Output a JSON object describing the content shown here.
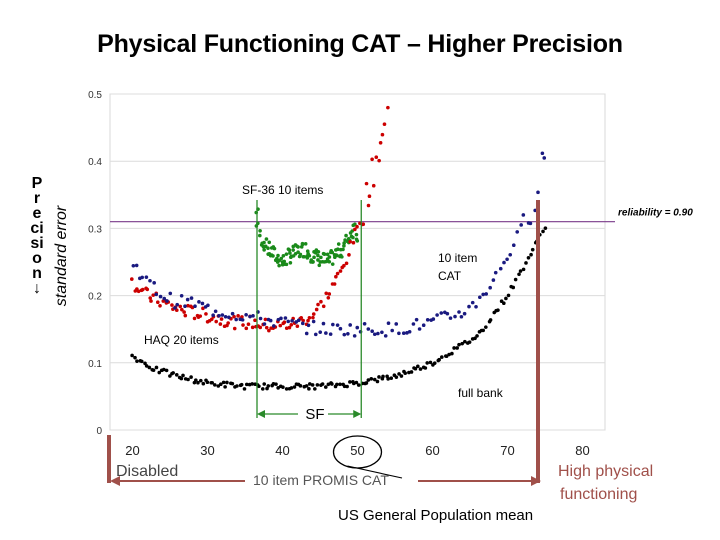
{
  "chart_data": {
    "type": "scatter",
    "title": "Physical Functioning CAT – Higher Precision",
    "ylabel": "standard error",
    "side_label": "Precision",
    "side_arrow": "↓",
    "xlim": [
      17,
      83
    ],
    "ylim": [
      0,
      0.5
    ],
    "y_ticks": [
      "0",
      "0.1",
      "0.2",
      "0.3",
      "0.4",
      "0.5"
    ],
    "x_ticks": [
      "20",
      "30",
      "40",
      "50",
      "60",
      "70",
      "80"
    ],
    "reliability_line": {
      "y": 0.31,
      "label": "reliability = 0.90"
    },
    "series": [
      {
        "name": "SF-36 10 items",
        "color": "#1a8a1a",
        "x": [
          36.5,
          37,
          37.5,
          38,
          38.5,
          39,
          39.5,
          40,
          41,
          42,
          43,
          44,
          45,
          46,
          47,
          48,
          49,
          50
        ],
        "y": [
          0.32,
          0.29,
          0.28,
          0.27,
          0.265,
          0.26,
          0.255,
          0.25,
          0.26,
          0.265,
          0.27,
          0.26,
          0.255,
          0.25,
          0.26,
          0.27,
          0.29,
          0.31
        ]
      },
      {
        "name": "HAQ 20 items",
        "color": "#cc0000",
        "x": [
          20,
          22,
          24,
          26,
          28,
          30,
          32,
          34,
          36,
          38,
          40,
          42,
          44,
          46,
          48,
          50,
          52,
          54
        ],
        "y": [
          0.22,
          0.2,
          0.19,
          0.18,
          0.175,
          0.17,
          0.165,
          0.16,
          0.16,
          0.155,
          0.155,
          0.16,
          0.17,
          0.2,
          0.24,
          0.3,
          0.38,
          0.47
        ]
      },
      {
        "name": "10 item CAT",
        "color": "#1a1a80",
        "x": [
          20,
          22,
          24,
          26,
          28,
          30,
          35,
          40,
          45,
          50,
          55,
          60,
          65,
          68,
          70,
          72,
          74,
          75
        ],
        "y": [
          0.25,
          0.22,
          0.2,
          0.19,
          0.19,
          0.18,
          0.17,
          0.16,
          0.15,
          0.15,
          0.15,
          0.16,
          0.18,
          0.22,
          0.26,
          0.3,
          0.36,
          0.42
        ]
      },
      {
        "name": "full bank",
        "color": "#000000",
        "x": [
          20,
          23,
          26,
          30,
          35,
          40,
          45,
          50,
          55,
          60,
          63,
          66,
          68,
          70,
          72,
          74,
          75
        ],
        "y": [
          0.11,
          0.09,
          0.08,
          0.07,
          0.065,
          0.065,
          0.065,
          0.07,
          0.08,
          0.1,
          0.12,
          0.14,
          0.17,
          0.2,
          0.24,
          0.28,
          0.31
        ]
      }
    ],
    "annotations": {
      "sf": "SF",
      "disabled": "Disabled",
      "promis": "10 item PROMIS CAT",
      "high_physical_1": "High physical",
      "high_physical_2": "functioning",
      "us_mean": "US General Population mean"
    }
  }
}
